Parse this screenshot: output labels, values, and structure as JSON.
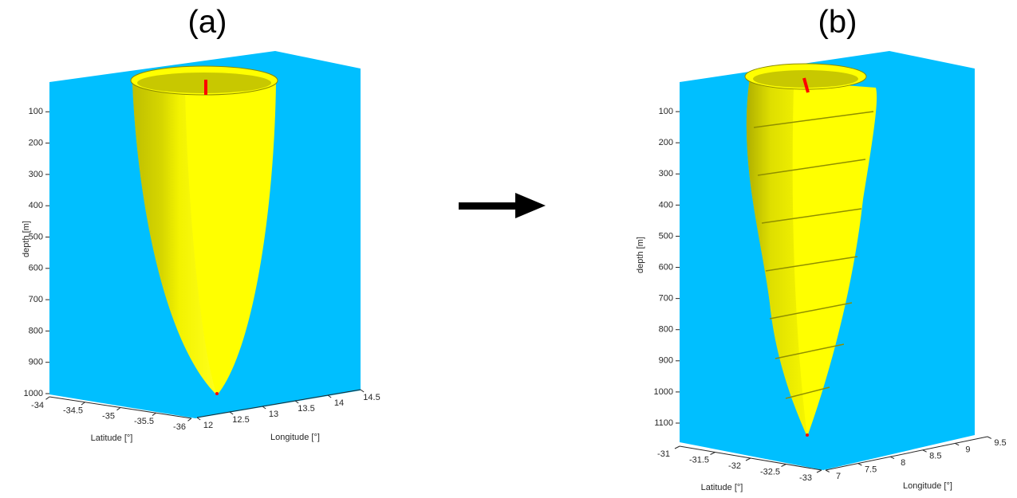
{
  "chart_data": [
    {
      "type": "surface3d",
      "title": "(a)",
      "xlabel": "Latitude [°]",
      "ylabel": "Longitude [°]",
      "zlabel": "depth [m]",
      "xlim": [
        -34,
        -36
      ],
      "xticks": [
        -34,
        -34.5,
        -35,
        -35.5,
        -36
      ],
      "ylim": [
        12,
        14.5
      ],
      "yticks": [
        12,
        12.5,
        13,
        13.5,
        14,
        14.5
      ],
      "zlim": [
        0,
        1000
      ],
      "zticks": [
        100,
        200,
        300,
        400,
        500,
        600,
        700,
        800,
        900,
        1000
      ],
      "background_color": "#00bfff",
      "surface_color": "#ffff00"
    },
    {
      "type": "surface3d",
      "title": "(b)",
      "xlabel": "Latitude [°]",
      "ylabel": "Longitude [°]",
      "zlabel": "depth [m]",
      "xlim": [
        -31,
        -33
      ],
      "xticks": [
        -31,
        -31.5,
        -32,
        -32.5,
        -33
      ],
      "ylim": [
        7,
        9.5
      ],
      "yticks": [
        7,
        7.5,
        8,
        8.5,
        9,
        9.5
      ],
      "zlim": [
        0,
        1100
      ],
      "zticks": [
        100,
        200,
        300,
        400,
        500,
        600,
        700,
        800,
        900,
        1000,
        1100
      ],
      "background_color": "#00bfff",
      "surface_color": "#ffff00"
    }
  ]
}
